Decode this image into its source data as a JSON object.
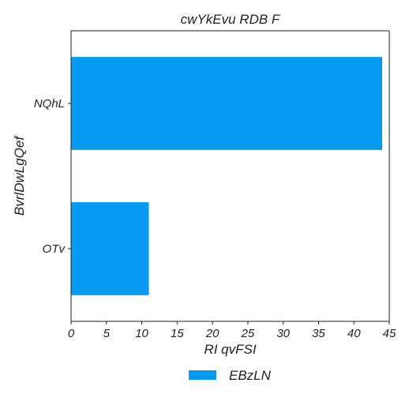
{
  "chart_data": {
    "type": "bar",
    "orientation": "horizontal",
    "title": "cwYkEvu RDB F",
    "xlabel": "RI qvFSI",
    "ylabel": "BvrlDwLgQef",
    "categories": [
      "NQhL",
      "OTv"
    ],
    "series": [
      {
        "name": "EBzLN",
        "values": [
          44,
          11
        ],
        "color": "#069af3"
      }
    ],
    "xlim": [
      0,
      45
    ],
    "xticks": [
      0,
      5,
      10,
      15,
      20,
      25,
      30,
      35,
      40,
      45
    ],
    "grid": false,
    "legend": "bottom-center"
  }
}
